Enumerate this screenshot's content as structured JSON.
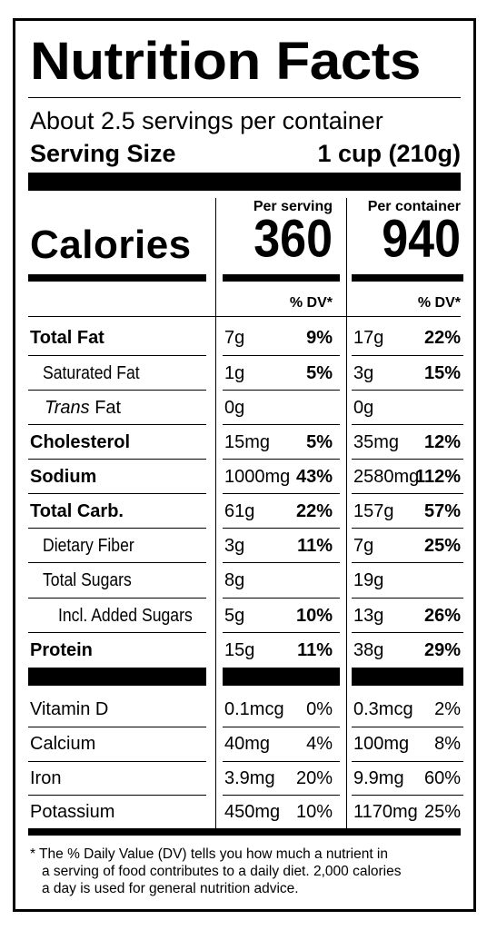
{
  "title": "Nutrition Facts",
  "servings_per_container": "About 2.5 servings per container",
  "serving_size": {
    "label": "Serving Size",
    "value": "1 cup (210g)"
  },
  "columns": {
    "per_serving": "Per serving",
    "per_container": "Per container"
  },
  "calories": {
    "label": "Calories",
    "per_serving": "360",
    "per_container": "940"
  },
  "dv_header": "% DV*",
  "nutrients": [
    {
      "label": "Total Fat",
      "serving_amt": "7g",
      "serving_dv": "9%",
      "container_amt": "17g",
      "container_dv": "22%"
    },
    {
      "label": "Saturated Fat",
      "serving_amt": "1g",
      "serving_dv": "5%",
      "container_amt": "3g",
      "container_dv": "15%"
    },
    {
      "label_italic": "Trans",
      "label_rest": " Fat",
      "serving_amt": "0g",
      "serving_dv": "",
      "container_amt": "0g",
      "container_dv": ""
    },
    {
      "label": "Cholesterol",
      "serving_amt": "15mg",
      "serving_dv": "5%",
      "container_amt": "35mg",
      "container_dv": "12%"
    },
    {
      "label": "Sodium",
      "serving_amt": "1000mg",
      "serving_dv": "43%",
      "container_amt": "2580mg",
      "container_dv": "112%"
    },
    {
      "label": "Total Carb.",
      "serving_amt": "61g",
      "serving_dv": "22%",
      "container_amt": "157g",
      "container_dv": "57%"
    },
    {
      "label": "Dietary Fiber",
      "serving_amt": "3g",
      "serving_dv": "11%",
      "container_amt": "7g",
      "container_dv": "25%"
    },
    {
      "label": "Total Sugars",
      "serving_amt": "8g",
      "serving_dv": "",
      "container_amt": "19g",
      "container_dv": ""
    },
    {
      "label": "Incl. Added Sugars",
      "serving_amt": "5g",
      "serving_dv": "10%",
      "container_amt": "13g",
      "container_dv": "26%"
    },
    {
      "label": "Protein",
      "serving_amt": "15g",
      "serving_dv": "11%",
      "container_amt": "38g",
      "container_dv": "29%"
    }
  ],
  "vitamins": [
    {
      "label": "Vitamin D",
      "serving_amt": "0.1mcg",
      "serving_dv": "0%",
      "container_amt": "0.3mcg",
      "container_dv": "2%"
    },
    {
      "label": "Calcium",
      "serving_amt": "40mg",
      "serving_dv": "4%",
      "container_amt": "100mg",
      "container_dv": "8%"
    },
    {
      "label": "Iron",
      "serving_amt": "3.9mg",
      "serving_dv": "20%",
      "container_amt": "9.9mg",
      "container_dv": "60%"
    },
    {
      "label": "Potassium",
      "serving_amt": "450mg",
      "serving_dv": "10%",
      "container_amt": "1170mg",
      "container_dv": "25%"
    }
  ],
  "footnote": {
    "line1": "* The % Daily Value (DV) tells you how much a nutrient in",
    "line2": "a serving of food contributes to a daily diet. 2,000 calories",
    "line3": "a day is used for general nutrition advice."
  }
}
